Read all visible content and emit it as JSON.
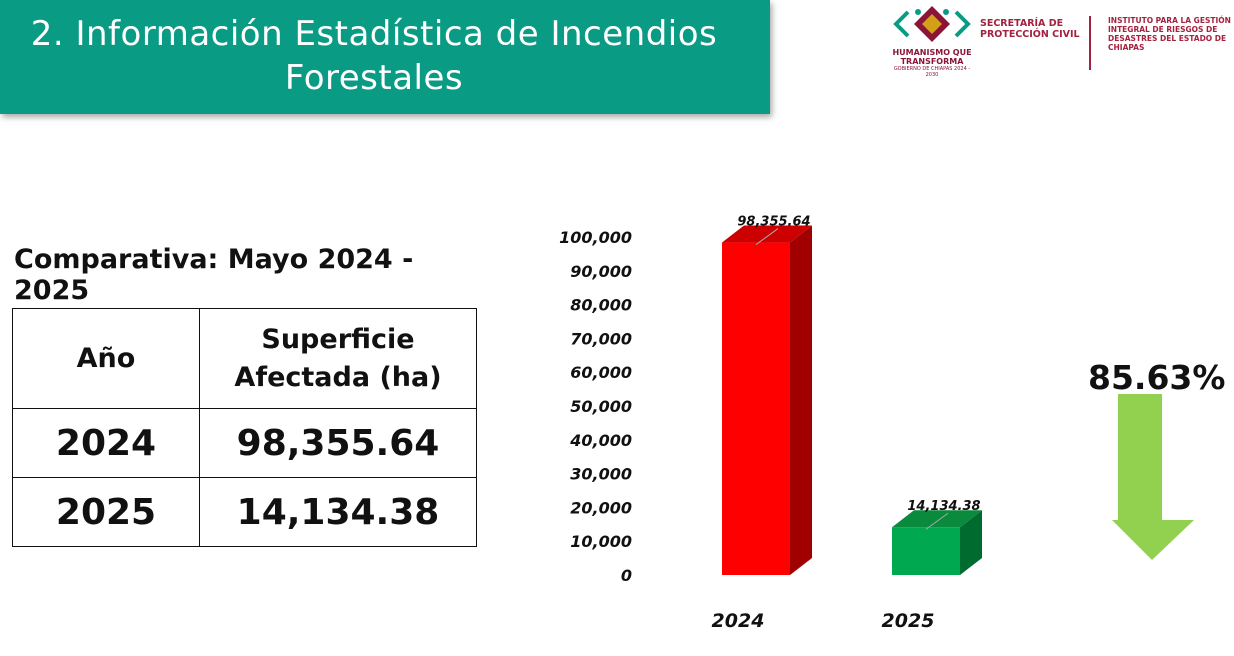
{
  "header": {
    "title": "2. Información Estadística de Incendios Forestales",
    "background_color": "#0a9b84"
  },
  "logos": {
    "emblem_text": "HUMANISMO QUE TRANSFORMA",
    "emblem_subtext": "GOBIERNO DE CHIAPAS 2024 - 2030",
    "secretaria": "SECRETARÍA DE PROTECCIÓN CIVIL",
    "instituto": "INSTITUTO PARA LA GESTIÓN INTEGRAL DE RIESGOS DE DESASTRES DEL ESTADO DE CHIAPAS"
  },
  "comparison": {
    "subtitle": "Comparativa: Mayo 2024 - 2025",
    "headers": [
      "Año",
      "Superficie Afectada (ha)"
    ],
    "rows": [
      [
        "2024",
        "98,355.64"
      ],
      [
        "2025",
        "14,134.38"
      ]
    ]
  },
  "reduction": {
    "label": "85.63%",
    "value": 85.63,
    "arrow_color": "#92d050"
  },
  "chart_data": {
    "type": "bar",
    "categories": [
      "2024",
      "2025"
    ],
    "values": [
      98355.64,
      14134.38
    ],
    "data_labels": [
      "98,355.64",
      "14,134.38"
    ],
    "ylim": [
      0,
      100000
    ],
    "yticks": [
      "0",
      "10,000",
      "20,000",
      "30,000",
      "40,000",
      "50,000",
      "60,000",
      "70,000",
      "80,000",
      "90,000",
      "100,000"
    ],
    "colors": [
      "#ff0000",
      "#00a84f"
    ],
    "side_colors": [
      "#a00000",
      "#006b2f"
    ],
    "top_colors": [
      "#cc0000",
      "#0a8a3c"
    ],
    "style": "3d-column",
    "grid": false,
    "legend": "none"
  }
}
